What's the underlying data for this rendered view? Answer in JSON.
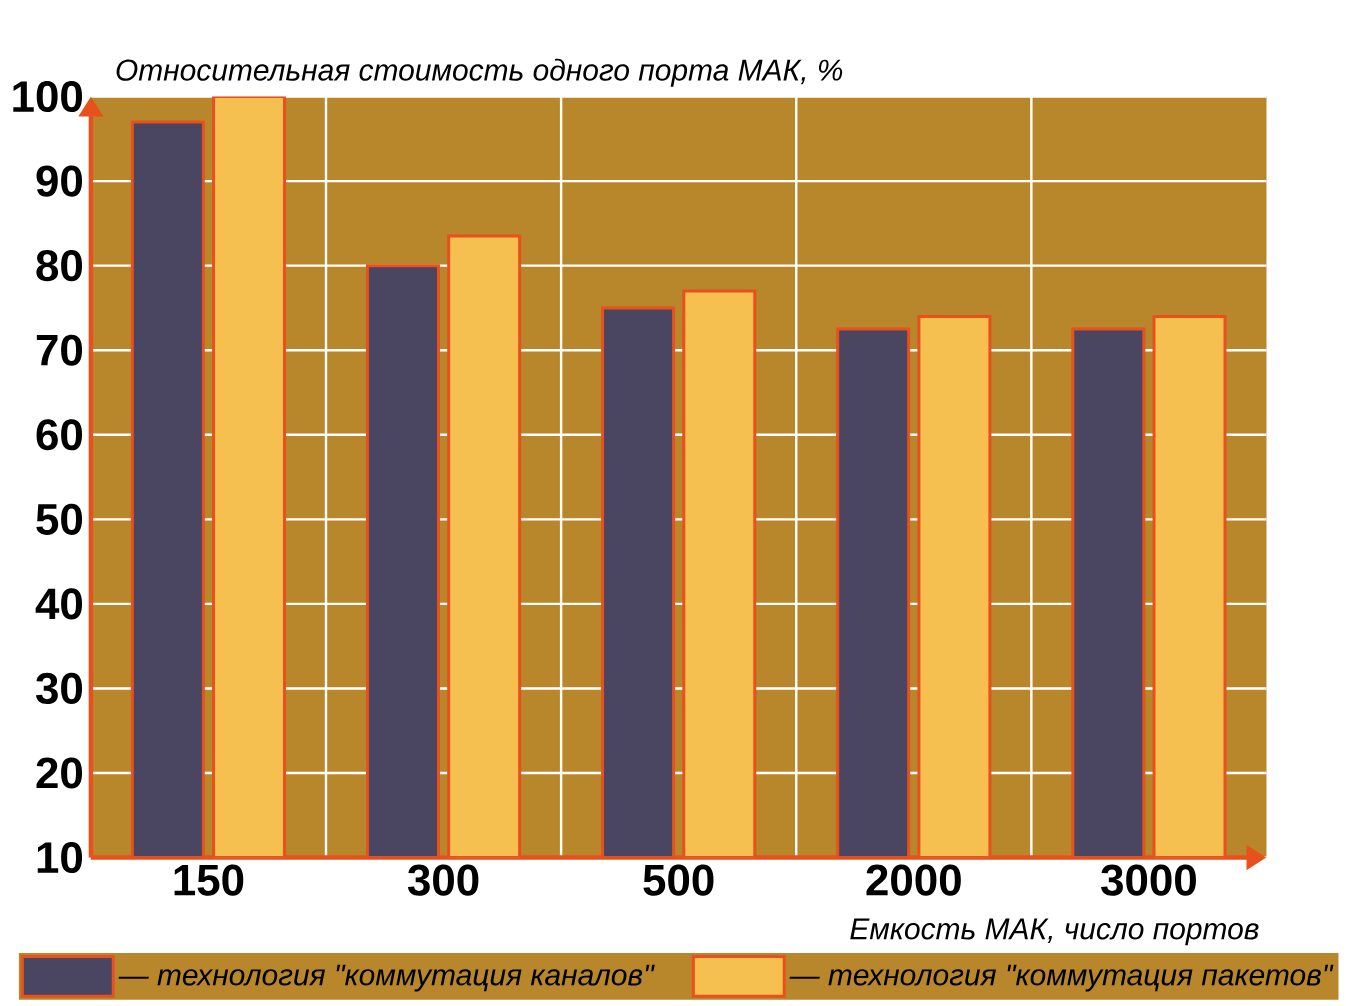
{
  "chart_data": {
    "type": "bar",
    "ylabel": "Относительная стоимость одного порта МАК, %",
    "xlabel": "Емкость МАК, число портов",
    "categories": [
      "150",
      "300",
      "500",
      "2000",
      "3000"
    ],
    "series": [
      {
        "name": "— технология \"коммутация каналов\"",
        "color": "#4a4560",
        "values": [
          97,
          80,
          75,
          72.5,
          72.5
        ]
      },
      {
        "name": "— технология \"коммутация пакетов\"",
        "color": "#f5c050",
        "values": [
          100,
          83.5,
          77,
          74,
          74
        ]
      }
    ],
    "ylim": [
      10,
      100
    ],
    "yticks": [
      10,
      20,
      30,
      40,
      50,
      60,
      70,
      80,
      90,
      100
    ],
    "grid": true,
    "legend": "bottom"
  }
}
